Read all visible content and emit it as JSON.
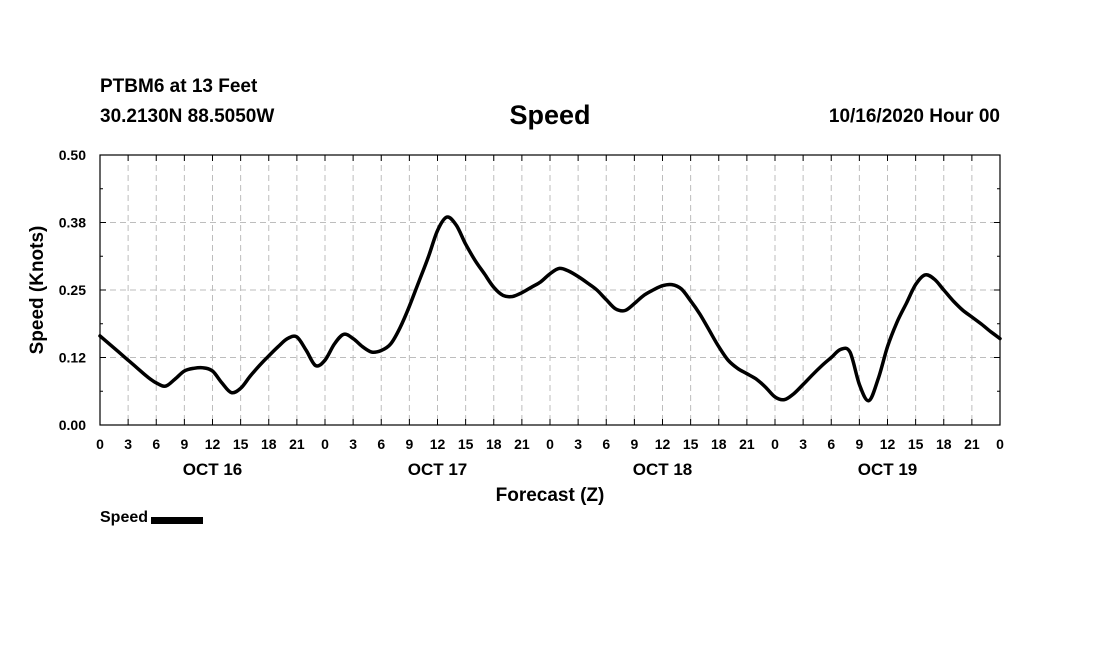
{
  "header": {
    "station": "PTBM6 at 13 Feet",
    "coords": "30.2130N 88.5050W",
    "title": "Speed",
    "date": "10/16/2020 Hour 00"
  },
  "chart_data": {
    "type": "line",
    "title": "Speed",
    "xlabel": "Forecast (Z)",
    "ylabel": "Speed (Knots)",
    "ylim": [
      0,
      0.5
    ],
    "y_ticks": [
      "0.00",
      "0.12",
      "0.25",
      "0.38",
      "0.50"
    ],
    "xlim_hours": [
      0,
      96
    ],
    "x_tick_labels": [
      "0",
      "3",
      "6",
      "9",
      "12",
      "15",
      "18",
      "21",
      "0",
      "3",
      "6",
      "9",
      "12",
      "15",
      "18",
      "21",
      "0",
      "3",
      "6",
      "9",
      "12",
      "15",
      "18",
      "21",
      "0",
      "3",
      "6",
      "9",
      "12",
      "15",
      "18",
      "21",
      "0"
    ],
    "day_labels": [
      {
        "label": "OCT 16",
        "hour": 12
      },
      {
        "label": "OCT 17",
        "hour": 36
      },
      {
        "label": "OCT 18",
        "hour": 60
      },
      {
        "label": "OCT 19",
        "hour": 84
      }
    ],
    "grid": true,
    "legend": "bottom-left",
    "series": [
      {
        "name": "Speed",
        "color": "#000000",
        "x": [
          0,
          2,
          3,
          4,
          5,
          6,
          7,
          8,
          9,
          10,
          11,
          12,
          13,
          14,
          15,
          16,
          17,
          18,
          19,
          20,
          21,
          22,
          23,
          24,
          25,
          26,
          27,
          28,
          29,
          30,
          31,
          32,
          33,
          34,
          35,
          36,
          37,
          38,
          39,
          40,
          41,
          42,
          43,
          44,
          45,
          46,
          47,
          48,
          49,
          50,
          51,
          52,
          53,
          54,
          55,
          56,
          57,
          58,
          59,
          60,
          61,
          62,
          63,
          64,
          65,
          66,
          67,
          68,
          69,
          70,
          71,
          72,
          73,
          74,
          75,
          76,
          77,
          78,
          79,
          80,
          81,
          82,
          83,
          84,
          85,
          86,
          87,
          88,
          89,
          90,
          91,
          92,
          93,
          94,
          95,
          96
        ],
        "values": [
          0.165,
          0.135,
          0.12,
          0.105,
          0.09,
          0.078,
          0.072,
          0.085,
          0.1,
          0.105,
          0.106,
          0.1,
          0.078,
          0.06,
          0.068,
          0.09,
          0.11,
          0.128,
          0.145,
          0.16,
          0.163,
          0.138,
          0.11,
          0.12,
          0.15,
          0.168,
          0.16,
          0.145,
          0.135,
          0.138,
          0.15,
          0.18,
          0.22,
          0.265,
          0.31,
          0.36,
          0.385,
          0.37,
          0.335,
          0.305,
          0.28,
          0.255,
          0.24,
          0.238,
          0.245,
          0.255,
          0.265,
          0.28,
          0.29,
          0.285,
          0.275,
          0.263,
          0.25,
          0.232,
          0.215,
          0.212,
          0.225,
          0.24,
          0.25,
          0.258,
          0.26,
          0.252,
          0.23,
          0.205,
          0.175,
          0.145,
          0.12,
          0.105,
          0.095,
          0.085,
          0.07,
          0.052,
          0.047,
          0.058,
          0.075,
          0.093,
          0.11,
          0.125,
          0.14,
          0.135,
          0.075,
          0.045,
          0.085,
          0.145,
          0.19,
          0.225,
          0.26,
          0.278,
          0.27,
          0.25,
          0.23,
          0.213,
          0.2,
          0.187,
          0.173,
          0.16
        ]
      }
    ]
  },
  "legend": {
    "label": "Speed"
  }
}
